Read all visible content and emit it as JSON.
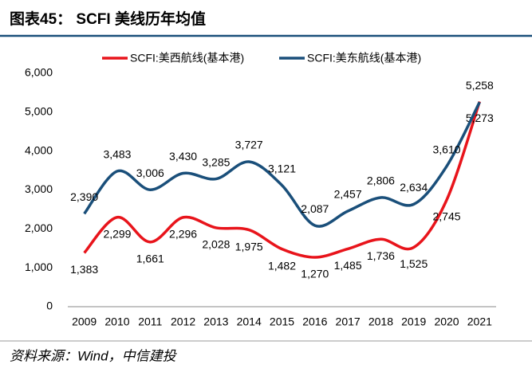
{
  "header": {
    "title": "图表45：  SCFI 美线历年均值"
  },
  "chart_data": {
    "type": "line",
    "categories": [
      "2009",
      "2010",
      "2011",
      "2012",
      "2013",
      "2014",
      "2015",
      "2016",
      "2017",
      "2018",
      "2019",
      "2020",
      "2021"
    ],
    "series": [
      {
        "name": "SCFI:美西航线(基本港)",
        "color": "#e8141b",
        "values": [
          1383,
          2299,
          1661,
          2296,
          2028,
          1975,
          1482,
          1270,
          1485,
          1736,
          1525,
          2745,
          5273
        ],
        "value_labels": [
          "1,383",
          "2,299",
          "1,661",
          "2,296",
          "2,028",
          "1,975",
          "1,482",
          "1,270",
          "1,485",
          "1,736",
          "1,525",
          "2,745",
          "5,273"
        ]
      },
      {
        "name": "SCFI:美东航线(基本港)",
        "color": "#1a4f7a",
        "values": [
          2390,
          3483,
          3006,
          3430,
          3285,
          3727,
          3121,
          2087,
          2457,
          2806,
          2634,
          3610,
          5258
        ],
        "value_labels": [
          "2,390",
          "3,483",
          "3,006",
          "3,430",
          "3,285",
          "3,727",
          "3,121",
          "2,087",
          "2,457",
          "2,806",
          "2,634",
          "3,610",
          "5,258"
        ]
      }
    ],
    "ylim": [
      0,
      6000
    ],
    "yticks": [
      0,
      {
        "value": 1000,
        "label": "1,000"
      },
      {
        "value": 2000,
        "label": "2,000"
      },
      {
        "value": 3000,
        "label": "3,000"
      },
      {
        "value": 4000,
        "label": "4,000"
      },
      {
        "value": 5000,
        "label": "5,000"
      },
      {
        "value": 6000,
        "label": "6,000"
      }
    ],
    "legend": "top",
    "smooth": true
  },
  "footer": {
    "source": "资料来源：Wind，中信建投"
  }
}
